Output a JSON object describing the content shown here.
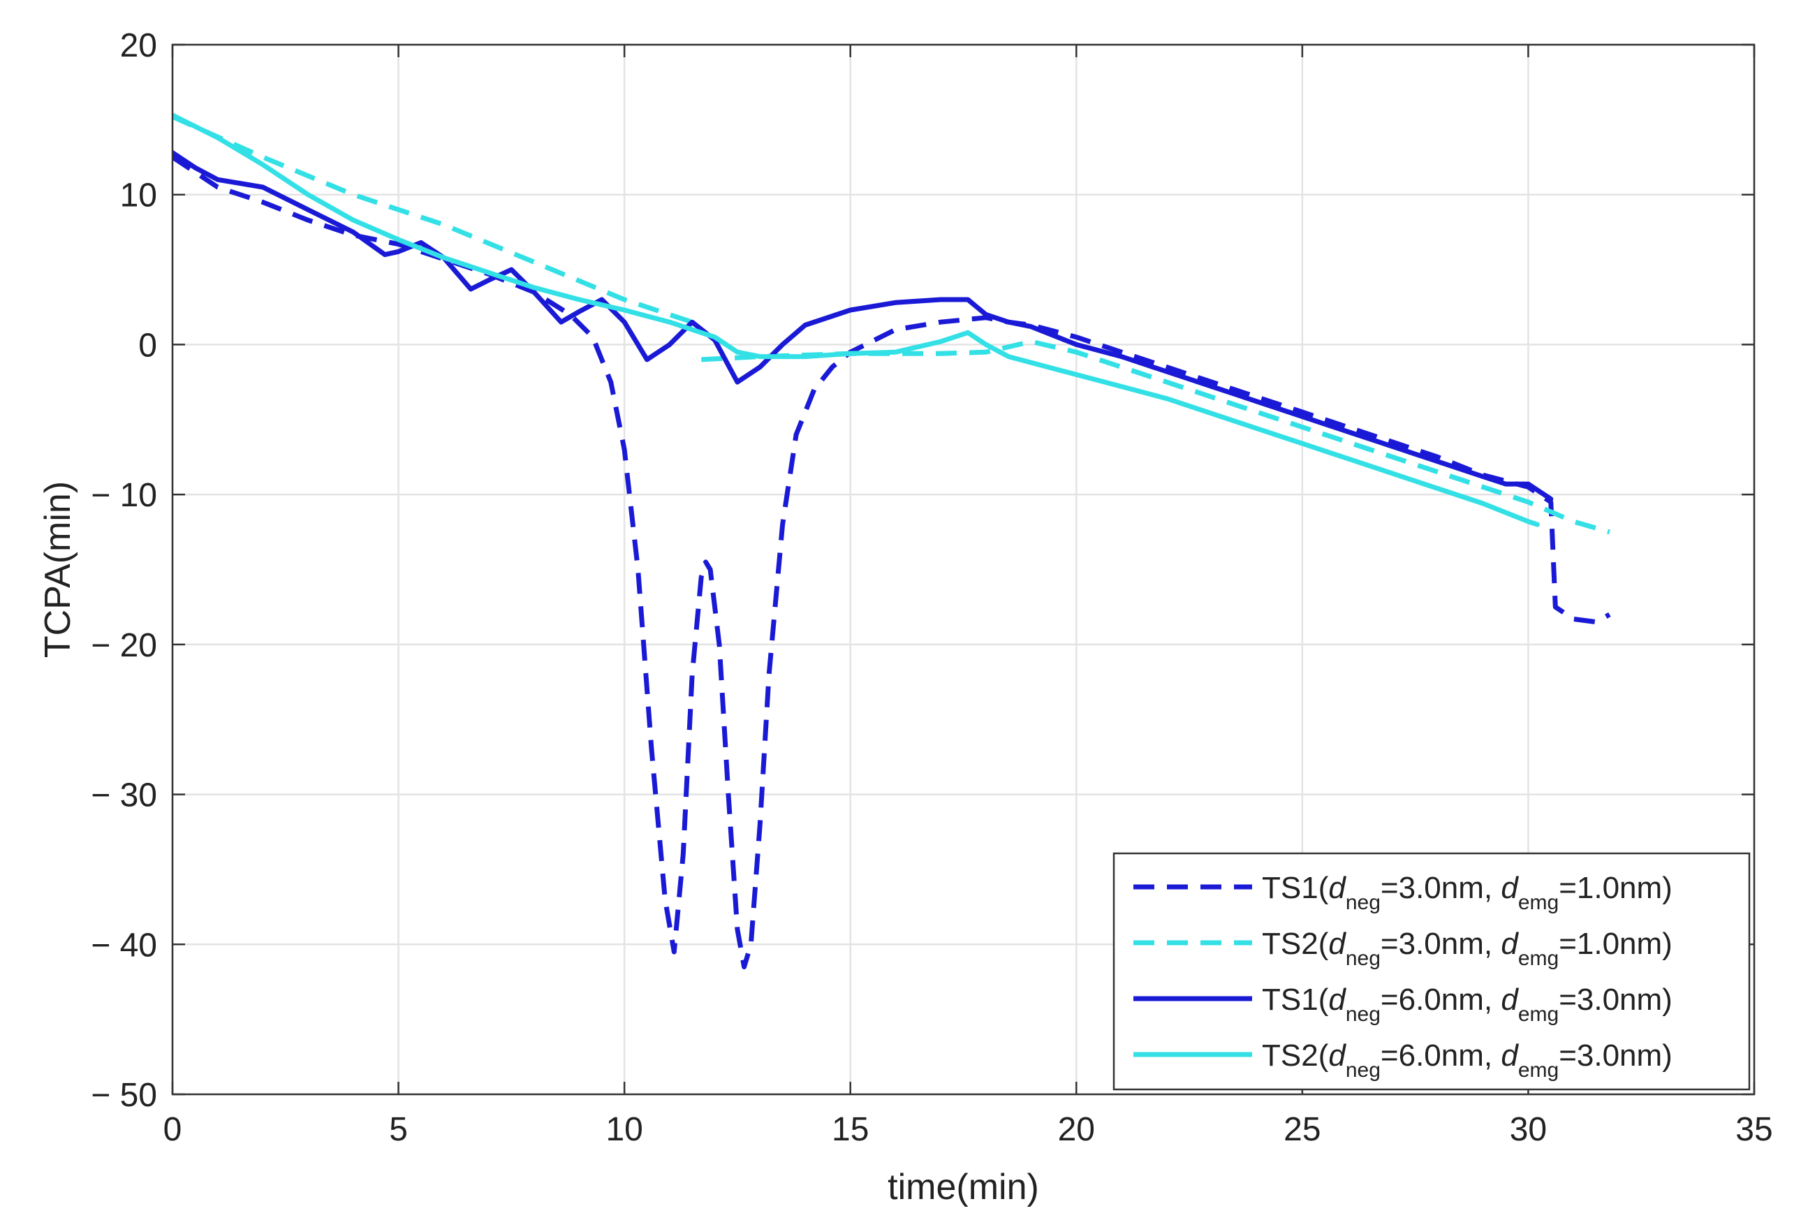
{
  "chart_data": {
    "type": "line",
    "title": "",
    "xlabel": "time(min)",
    "ylabel": "TCPA(min)",
    "xlim": [
      0,
      35
    ],
    "ylim": [
      -50,
      20
    ],
    "grid": true,
    "legend_position": "bottom-right",
    "x_ticks": [
      0,
      5,
      10,
      15,
      20,
      25,
      30,
      35
    ],
    "x_tick_labels": [
      "0",
      "5",
      "10",
      "15",
      "20",
      "25",
      "30",
      "35"
    ],
    "y_ticks": [
      20,
      10,
      0,
      -10,
      -20,
      -30,
      -40,
      -50
    ],
    "y_tick_labels": [
      "20",
      "10",
      "0",
      "− 10",
      "− 20",
      "− 30",
      "− 40",
      "− 50"
    ],
    "series": [
      {
        "name": "TS1(dneg=3.0nm, demg=1.0nm)",
        "legend": {
          "prefix": "TS1(",
          "d1": "d",
          "sub1": "neg",
          "mid": "=3.0nm, ",
          "d2": "d",
          "sub2": "emg",
          "suffix": "=1.0nm)"
        },
        "color": "#1a1ad6",
        "style": "dashed",
        "segments": [
          [
            [
              0,
              12.5
            ],
            [
              0.5,
              11.5
            ],
            [
              1,
              10.5
            ],
            [
              2,
              9.5
            ],
            [
              3,
              8.3
            ],
            [
              4,
              7.3
            ],
            [
              5,
              6.7
            ],
            [
              6,
              5.7
            ],
            [
              7,
              4.7
            ],
            [
              8,
              3.5
            ],
            [
              8.8,
              2
            ],
            [
              9.3,
              0.5
            ],
            [
              9.7,
              -2.5
            ],
            [
              10,
              -7
            ],
            [
              10.3,
              -15
            ],
            [
              10.6,
              -27
            ],
            [
              10.9,
              -37
            ],
            [
              11.1,
              -40.5
            ],
            [
              11.3,
              -34
            ],
            [
              11.5,
              -22
            ],
            [
              11.7,
              -15.5
            ],
            [
              11.8,
              -14.5
            ],
            [
              11.9,
              -15
            ],
            [
              12.1,
              -20
            ],
            [
              12.3,
              -30
            ],
            [
              12.5,
              -39
            ],
            [
              12.65,
              -41.5
            ],
            [
              12.8,
              -40
            ],
            [
              13,
              -32
            ],
            [
              13.2,
              -22
            ],
            [
              13.5,
              -12
            ],
            [
              13.8,
              -6
            ],
            [
              14.2,
              -3
            ],
            [
              14.6,
              -1.5
            ],
            [
              15,
              -0.5
            ],
            [
              16,
              1
            ],
            [
              17,
              1.5
            ],
            [
              18,
              1.8
            ],
            [
              18.5,
              1.5
            ],
            [
              19,
              1.3
            ],
            [
              20,
              0.5
            ],
            [
              21,
              -0.5
            ],
            [
              22,
              -1.5
            ],
            [
              23,
              -2.5
            ],
            [
              24,
              -3.5
            ],
            [
              25,
              -4.5
            ],
            [
              26,
              -5.5
            ],
            [
              27,
              -6.5
            ],
            [
              28,
              -7.5
            ],
            [
              29,
              -8.7
            ],
            [
              30,
              -9.5
            ],
            [
              30.5,
              -10.5
            ],
            [
              30.6,
              -17.5
            ],
            [
              31,
              -18.3
            ],
            [
              31.5,
              -18.5
            ],
            [
              31.8,
              -18
            ]
          ]
        ]
      },
      {
        "name": "TS2(dneg=3.0nm, demg=1.0nm)",
        "legend": {
          "prefix": "TS2(",
          "d1": "d",
          "sub1": "neg",
          "mid": "=3.0nm, ",
          "d2": "d",
          "sub2": "emg",
          "suffix": "=1.0nm)"
        },
        "color": "#33e0e6",
        "style": "dashed",
        "segments": [
          [
            [
              0,
              15.2
            ],
            [
              2,
              12.5
            ],
            [
              4,
              10
            ],
            [
              6,
              8
            ],
            [
              8,
              5.5
            ],
            [
              10,
              3
            ],
            [
              11,
              2
            ],
            [
              11.5,
              1.5
            ]
          ],
          [
            [
              11.7,
              -1
            ],
            [
              13,
              -0.8
            ],
            [
              15,
              -0.6
            ],
            [
              17,
              -0.6
            ],
            [
              18,
              -0.5
            ],
            [
              19,
              0.2
            ],
            [
              20,
              -0.5
            ],
            [
              22,
              -2.5
            ],
            [
              24,
              -4.5
            ],
            [
              26,
              -6.5
            ],
            [
              28,
              -8.5
            ],
            [
              30,
              -10.5
            ],
            [
              31,
              -11.8
            ],
            [
              31.8,
              -12.5
            ]
          ]
        ]
      },
      {
        "name": "TS1(dneg=6.0nm, demg=3.0nm)",
        "legend": {
          "prefix": "TS1(",
          "d1": "d",
          "sub1": "neg",
          "mid": "=6.0nm, ",
          "d2": "d",
          "sub2": "emg",
          "suffix": "=3.0nm)"
        },
        "color": "#1a1ad6",
        "style": "solid",
        "segments": [
          [
            [
              0,
              12.8
            ],
            [
              0.5,
              11.8
            ],
            [
              1,
              11
            ],
            [
              2,
              10.5
            ],
            [
              3,
              9
            ],
            [
              4,
              7.5
            ],
            [
              4.7,
              6
            ],
            [
              5,
              6.2
            ],
            [
              5.5,
              6.8
            ],
            [
              6,
              5.8
            ],
            [
              6.6,
              3.7
            ],
            [
              7,
              4.3
            ],
            [
              7.5,
              5
            ],
            [
              8,
              3.5
            ],
            [
              8.6,
              1.5
            ],
            [
              9,
              2.2
            ],
            [
              9.5,
              3
            ],
            [
              10,
              1.5
            ],
            [
              10.5,
              -1
            ],
            [
              11,
              0
            ],
            [
              11.5,
              1.5
            ],
            [
              12,
              0.3
            ],
            [
              12.5,
              -2.5
            ],
            [
              13,
              -1.5
            ],
            [
              13.5,
              0
            ],
            [
              14,
              1.3
            ],
            [
              15,
              2.3
            ],
            [
              16,
              2.8
            ],
            [
              17,
              3
            ],
            [
              17.6,
              3
            ],
            [
              18,
              2
            ],
            [
              18.5,
              1.5
            ],
            [
              19,
              1.2
            ],
            [
              20,
              0
            ],
            [
              21,
              -0.8
            ],
            [
              22,
              -1.8
            ],
            [
              23,
              -2.8
            ],
            [
              24,
              -3.8
            ],
            [
              25,
              -4.8
            ],
            [
              26,
              -5.8
            ],
            [
              27,
              -6.8
            ],
            [
              28,
              -7.8
            ],
            [
              29,
              -8.8
            ],
            [
              29.5,
              -9.3
            ],
            [
              30,
              -9.3
            ],
            [
              30.5,
              -10.3
            ]
          ]
        ]
      },
      {
        "name": "TS2(dneg=6.0nm, demg=3.0nm)",
        "legend": {
          "prefix": "TS2(",
          "d1": "d",
          "sub1": "neg",
          "mid": "=6.0nm, ",
          "d2": "d",
          "sub2": "emg",
          "suffix": "=3.0nm)"
        },
        "color": "#33e0e6",
        "style": "solid",
        "segments": [
          [
            [
              0,
              15.3
            ],
            [
              1,
              13.8
            ],
            [
              2,
              12
            ],
            [
              3,
              10
            ],
            [
              4,
              8.3
            ],
            [
              5,
              7
            ],
            [
              6,
              5.8
            ],
            [
              7,
              4.8
            ],
            [
              8,
              3.8
            ],
            [
              9,
              3
            ],
            [
              10,
              2.3
            ],
            [
              11,
              1.5
            ],
            [
              12,
              0.5
            ],
            [
              12.5,
              -0.5
            ],
            [
              13,
              -0.8
            ],
            [
              14,
              -0.8
            ],
            [
              15,
              -0.6
            ],
            [
              16,
              -0.5
            ],
            [
              17,
              0.2
            ],
            [
              17.6,
              0.8
            ],
            [
              18,
              0
            ],
            [
              18.5,
              -0.8
            ],
            [
              19,
              -1.2
            ],
            [
              20,
              -2
            ],
            [
              21,
              -2.8
            ],
            [
              22,
              -3.6
            ],
            [
              23,
              -4.6
            ],
            [
              24,
              -5.6
            ],
            [
              25,
              -6.6
            ],
            [
              26,
              -7.6
            ],
            [
              27,
              -8.6
            ],
            [
              28,
              -9.6
            ],
            [
              29,
              -10.6
            ],
            [
              30,
              -11.8
            ],
            [
              30.2,
              -12
            ]
          ]
        ]
      }
    ]
  }
}
